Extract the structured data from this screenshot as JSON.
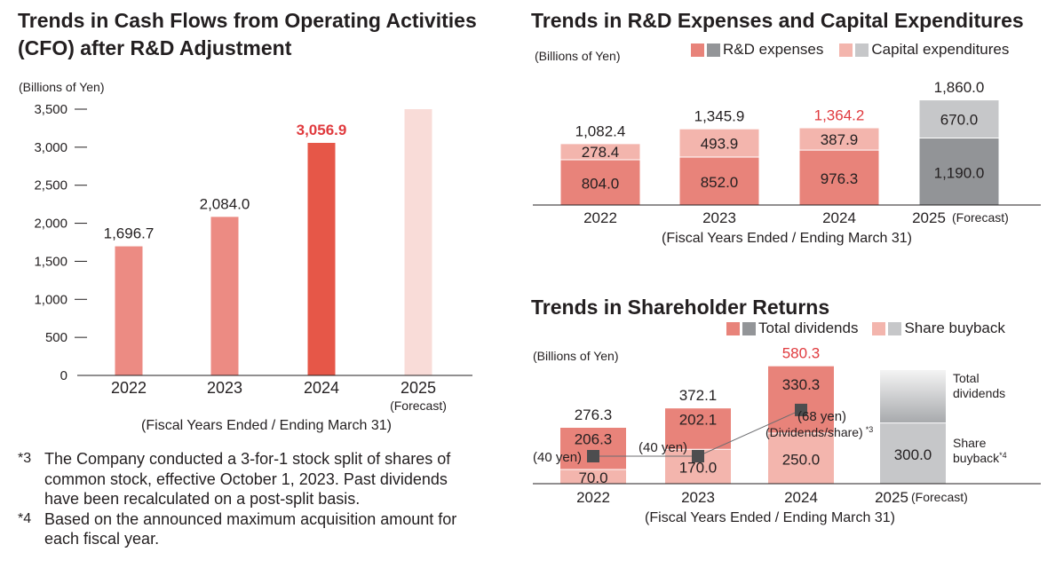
{
  "cfo": {
    "title_line1": "Trends in Cash Flows from Operating Activities",
    "title_line2": "(CFO) after R&D Adjustment",
    "unit": "(Billions of Yen)",
    "xcaption": "(Fiscal Years Ended / Ending March 31)",
    "forecast_label": "(Forecast)"
  },
  "rnd": {
    "title": "Trends in R&D Expenses and Capital Expenditures",
    "unit": "(Billions of Yen)",
    "legend_rd": "R&D expenses",
    "legend_capex": "Capital expenditures",
    "xcaption": "(Fiscal Years Ended / Ending March 31)"
  },
  "sh": {
    "title": "Trends in Shareholder Returns",
    "unit": "(Billions of Yen)",
    "legend_div": "Total dividends",
    "legend_buy": "Share buyback",
    "xcaption": "(Fiscal Years Ended / Ending March 31)",
    "side_div_line1": "Total",
    "side_div_line2": "dividends",
    "side_buy_line1": "Share",
    "side_buy_line2": "buyback",
    "side_buy_mark": "*4",
    "dps_caption": "(Dividends/share)",
    "dps_mark": "*3"
  },
  "notes": [
    {
      "mark_star": "*",
      "mark_num": "3",
      "text": "The Company conducted a 3-for-1 stock split of shares of common stock, effective October 1, 2023. Past dividends have been recalculated on a post-split basis."
    },
    {
      "mark_star": "*",
      "mark_num": "4",
      "text": "Based on the announced maximum acquisition amount for each fiscal year."
    }
  ],
  "colors": {
    "rd": "#e8837a",
    "capex": "#f3b5ad",
    "cfo_bar": "#ec8b83",
    "cfo_highlight": "#e65748",
    "cfo_forecast": "#f9dcd8",
    "forecast_dark": "#929497",
    "forecast_light": "#c6c7c9",
    "highlight_text": "#e03a3e",
    "dividend": "#e8837a",
    "buyback": "#f3b5ad",
    "marker": "#4d4d4f",
    "grey_swatch": "#939598",
    "grey_light_swatch": "#c6c7c9"
  },
  "chart_data": [
    {
      "type": "bar",
      "title": "Trends in Cash Flows from Operating Activities (CFO) after R&D Adjustment",
      "ylabel": "(Billions of Yen)",
      "xlabel": "(Fiscal Years Ended / Ending March 31)",
      "ylim": [
        0,
        3500
      ],
      "yticks": [
        0,
        500,
        1000,
        1500,
        2000,
        2500,
        3000,
        3500
      ],
      "ytick_labels": [
        "0",
        "500",
        "1,000",
        "1,500",
        "2,000",
        "2,500",
        "3,000",
        "3,500"
      ],
      "categories": [
        "2022",
        "2023",
        "2024",
        "2025"
      ],
      "values": [
        1696.7,
        2084.0,
        3056.9,
        null
      ],
      "value_labels": [
        "1,696.7",
        "2,084.0",
        "3,056.9",
        ""
      ],
      "forecast_bar_value": 3500,
      "highlight_index": 2,
      "forecast_index": 3
    },
    {
      "type": "bar",
      "stacked": true,
      "title": "Trends in R&D Expenses and Capital Expenditures",
      "ylabel": "(Billions of Yen)",
      "xlabel": "(Fiscal Years Ended / Ending March 31)",
      "categories": [
        "2022",
        "2023",
        "2024",
        "2025"
      ],
      "category_suffix": [
        "",
        "",
        "",
        "(Forecast)"
      ],
      "series": [
        {
          "name": "R&D expenses",
          "values": [
            804.0,
            852.0,
            976.3,
            1190.0
          ],
          "labels": [
            "804.0",
            "852.0",
            "976.3",
            "1,190.0"
          ]
        },
        {
          "name": "Capital expenditures",
          "values": [
            278.4,
            493.9,
            387.9,
            670.0
          ],
          "labels": [
            "278.4",
            "493.9",
            "387.9",
            "670.0"
          ]
        }
      ],
      "totals": [
        1082.4,
        1345.9,
        1364.2,
        1860.0
      ],
      "total_labels": [
        "1,082.4",
        "1,345.9",
        "1,364.2",
        "1,860.0"
      ],
      "highlight_index": 2,
      "forecast_index": 3
    },
    {
      "type": "bar",
      "stacked": true,
      "title": "Trends in Shareholder Returns",
      "ylabel": "(Billions of Yen)",
      "xlabel": "(Fiscal Years Ended / Ending March 31)",
      "categories": [
        "2022",
        "2023",
        "2024",
        "2025"
      ],
      "category_suffix": [
        "",
        "",
        "",
        "(Forecast)"
      ],
      "series": [
        {
          "name": "Share buyback",
          "values": [
            70.0,
            170.0,
            250.0,
            300.0
          ],
          "labels": [
            "70.0",
            "170.0",
            "250.0",
            "300.0"
          ]
        },
        {
          "name": "Total dividends",
          "values": [
            206.3,
            202.1,
            330.3,
            null
          ],
          "labels": [
            "206.3",
            "202.1",
            "330.3",
            ""
          ]
        }
      ],
      "totals": [
        276.3,
        372.1,
        580.3,
        null
      ],
      "total_labels": [
        "276.3",
        "372.1",
        "580.3",
        ""
      ],
      "dividends_per_share": {
        "name": "(Dividends/share)",
        "values": [
          40,
          40,
          68,
          null
        ],
        "labels": [
          "(40 yen)",
          "(40 yen)",
          "(68 yen)",
          ""
        ]
      },
      "highlight_index": 2,
      "forecast_index": 3
    }
  ]
}
